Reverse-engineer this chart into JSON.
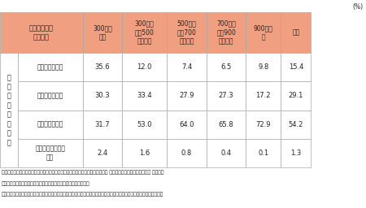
{
  "percent_label": "(%)",
  "header_merged": "夫の稼働所得\n（年収）",
  "col_headers": [
    "300万円\n以下",
    "300万円\n超～500\n万円以下",
    "500万円\n超～700\n万円以下",
    "700万円\n超～900\n万円以下",
    "900万円\n超",
    "全体"
  ],
  "vert_label": "妻\nの\n年\n金\n加\n入\n状\n況",
  "row_headers": [
    "第１号被保険者",
    "第２号被保険者",
    "第３号被保険者",
    "加入していない・\n不詳"
  ],
  "data": [
    [
      35.6,
      12.0,
      7.4,
      6.5,
      9.8,
      15.4
    ],
    [
      30.3,
      33.4,
      27.9,
      27.3,
      17.2,
      29.1
    ],
    [
      31.7,
      53.0,
      64.0,
      65.8,
      72.9,
      54.2
    ],
    [
      2.4,
      1.6,
      0.8,
      0.4,
      0.1,
      1.3
    ]
  ],
  "header_bg": "#F0A080",
  "white": "#FFFFFF",
  "grid_color": "#AAAAAA",
  "text_color": "#222222",
  "footnote1": "資料：厚生労働省「国民生活基礎調査（平成２２年）」より。男女共同参画会議 基本問題・影響調査専門調査会 女性と経",
  "footnote2": "　　済ワーキング・グループ（安胦由起子委員）による特別集計。",
  "footnote3": "注）夫婦をデータから確認できた場合を集計。妻の年齢は２０～５４歳。「全体」には夫の稼働所得が不明の場合を含む。",
  "bg_color": "#FFFFFF"
}
